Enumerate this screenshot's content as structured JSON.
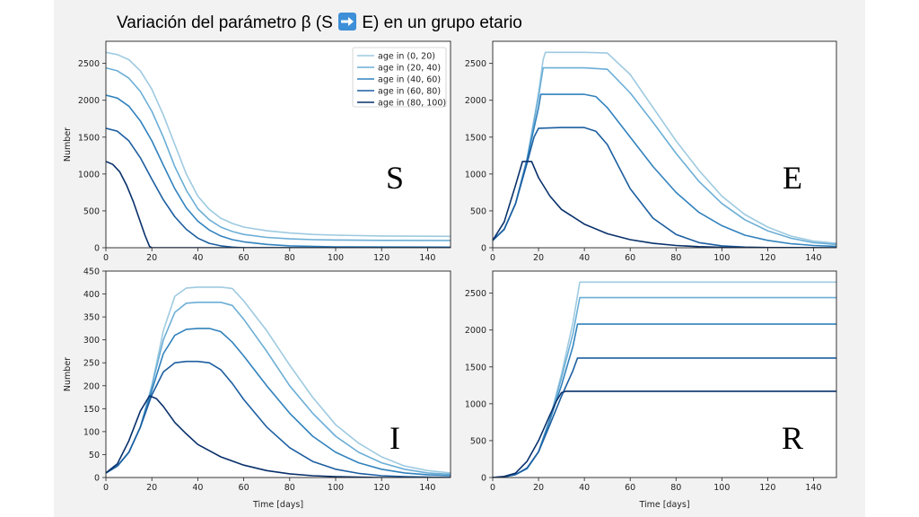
{
  "title": {
    "before": "Variación del parámetro β (S",
    "after": "E) en un grupo etario",
    "arrow_icon": "right-arrow-emoji-icon",
    "arrow_color": "#3d8fd8"
  },
  "colors": [
    "#9ecae1",
    "#6baed6",
    "#3182bd",
    "#1c5ea0",
    "#08306b"
  ],
  "legend": [
    "age in (0, 20)",
    "age in (20, 40)",
    "age in (40, 60)",
    "age in (60, 80)",
    "age in (80, 100)"
  ],
  "chart_data": [
    {
      "type": "line",
      "panel_letter": "S",
      "xlabel": "",
      "ylabel": "Number",
      "xlim": [
        0,
        150
      ],
      "ylim": [
        0,
        2800
      ],
      "xticks": [
        "0",
        "20",
        "40",
        "60",
        "80",
        "100",
        "120",
        "140"
      ],
      "yticks": [
        "0",
        "500",
        "1000",
        "1500",
        "2000",
        "2500"
      ],
      "legend_placement": "top-right",
      "series": [
        {
          "name": "age in (0, 20)",
          "x": [
            0,
            5,
            10,
            15,
            20,
            25,
            30,
            35,
            40,
            45,
            50,
            55,
            60,
            70,
            80,
            90,
            100,
            120,
            150
          ],
          "y": [
            2650,
            2620,
            2550,
            2400,
            2150,
            1800,
            1400,
            1000,
            700,
            520,
            400,
            330,
            280,
            230,
            200,
            180,
            170,
            160,
            155
          ]
        },
        {
          "name": "age in (20, 40)",
          "x": [
            0,
            5,
            10,
            15,
            20,
            25,
            30,
            35,
            40,
            45,
            50,
            55,
            60,
            70,
            80,
            90,
            100,
            120,
            150
          ],
          "y": [
            2440,
            2400,
            2300,
            2120,
            1850,
            1500,
            1100,
            780,
            530,
            380,
            280,
            220,
            180,
            140,
            120,
            110,
            105,
            100,
            98
          ]
        },
        {
          "name": "age in (40, 60)",
          "x": [
            0,
            5,
            10,
            15,
            20,
            25,
            30,
            35,
            40,
            45,
            50,
            55,
            60,
            70,
            80,
            100,
            150
          ],
          "y": [
            2070,
            2030,
            1920,
            1720,
            1450,
            1120,
            800,
            540,
            360,
            240,
            160,
            110,
            80,
            45,
            25,
            12,
            8
          ]
        },
        {
          "name": "age in (60, 80)",
          "x": [
            0,
            5,
            10,
            15,
            20,
            25,
            30,
            35,
            40,
            45,
            50,
            55,
            60,
            150
          ],
          "y": [
            1620,
            1580,
            1450,
            1220,
            930,
            650,
            420,
            250,
            130,
            60,
            25,
            8,
            0,
            0
          ]
        },
        {
          "name": "age in (80, 100)",
          "x": [
            0,
            3,
            6,
            9,
            12,
            15,
            17,
            19,
            20,
            150
          ],
          "y": [
            1170,
            1130,
            1030,
            850,
            620,
            350,
            170,
            20,
            0,
            0
          ]
        }
      ]
    },
    {
      "type": "line",
      "panel_letter": "E",
      "xlabel": "",
      "ylabel": "",
      "xlim": [
        0,
        150
      ],
      "ylim": [
        0,
        2800
      ],
      "xticks": [
        "0",
        "20",
        "40",
        "60",
        "80",
        "100",
        "120",
        "140"
      ],
      "yticks": [
        "0",
        "500",
        "1000",
        "1500",
        "2000",
        "2500"
      ],
      "series": [
        {
          "name": "age in (0, 20)",
          "x": [
            0,
            5,
            10,
            15,
            20,
            22,
            23,
            30,
            40,
            50,
            60,
            70,
            80,
            90,
            100,
            110,
            120,
            130,
            140,
            150
          ],
          "y": [
            100,
            250,
            600,
            1200,
            2100,
            2550,
            2650,
            2650,
            2650,
            2640,
            2350,
            1900,
            1450,
            1050,
            700,
            450,
            280,
            160,
            90,
            60
          ]
        },
        {
          "name": "age in (20, 40)",
          "x": [
            0,
            5,
            10,
            15,
            20,
            22,
            30,
            40,
            50,
            60,
            70,
            80,
            90,
            100,
            110,
            120,
            130,
            140,
            150
          ],
          "y": [
            100,
            250,
            600,
            1200,
            2050,
            2440,
            2440,
            2440,
            2420,
            2100,
            1700,
            1280,
            900,
            600,
            380,
            230,
            130,
            70,
            45
          ]
        },
        {
          "name": "age in (40, 60)",
          "x": [
            0,
            5,
            10,
            15,
            20,
            21,
            30,
            40,
            45,
            50,
            60,
            70,
            80,
            90,
            100,
            110,
            120,
            130,
            140,
            150
          ],
          "y": [
            100,
            250,
            600,
            1200,
            1900,
            2080,
            2080,
            2080,
            2050,
            1900,
            1500,
            1100,
            750,
            480,
            300,
            170,
            100,
            55,
            30,
            20
          ]
        },
        {
          "name": "age in (60, 80)",
          "x": [
            0,
            5,
            10,
            15,
            18,
            20,
            30,
            40,
            45,
            50,
            55,
            60,
            70,
            80,
            90,
            100,
            110,
            120,
            150
          ],
          "y": [
            100,
            250,
            600,
            1150,
            1500,
            1620,
            1630,
            1630,
            1580,
            1400,
            1100,
            800,
            400,
            180,
            70,
            25,
            8,
            3,
            0
          ]
        },
        {
          "name": "age in (80, 100)",
          "x": [
            0,
            5,
            10,
            13,
            17,
            20,
            25,
            30,
            40,
            50,
            60,
            70,
            80,
            90,
            100,
            120,
            150
          ],
          "y": [
            100,
            350,
            850,
            1170,
            1170,
            950,
            700,
            520,
            320,
            190,
            110,
            60,
            30,
            15,
            6,
            2,
            0
          ]
        }
      ]
    },
    {
      "type": "line",
      "panel_letter": "I",
      "xlabel": "Time [days]",
      "ylabel": "Number",
      "xlim": [
        0,
        150
      ],
      "ylim": [
        0,
        450
      ],
      "xticks": [
        "0",
        "20",
        "40",
        "60",
        "80",
        "100",
        "120",
        "140"
      ],
      "yticks": [
        "0",
        "50",
        "100",
        "150",
        "200",
        "250",
        "300",
        "350",
        "400",
        "450"
      ],
      "series": [
        {
          "name": "age in (0, 20)",
          "x": [
            0,
            5,
            10,
            15,
            20,
            25,
            30,
            35,
            40,
            50,
            55,
            60,
            70,
            80,
            90,
            100,
            110,
            120,
            130,
            140,
            150
          ],
          "y": [
            10,
            25,
            55,
            110,
            200,
            320,
            395,
            413,
            415,
            415,
            412,
            385,
            320,
            245,
            175,
            115,
            75,
            45,
            25,
            15,
            10
          ]
        },
        {
          "name": "age in (20, 40)",
          "x": [
            0,
            5,
            10,
            15,
            20,
            25,
            30,
            35,
            40,
            50,
            55,
            60,
            70,
            80,
            90,
            100,
            110,
            120,
            130,
            140,
            150
          ],
          "y": [
            10,
            25,
            55,
            110,
            200,
            300,
            360,
            380,
            382,
            382,
            375,
            345,
            275,
            200,
            140,
            90,
            55,
            32,
            18,
            10,
            7
          ]
        },
        {
          "name": "age in (40, 60)",
          "x": [
            0,
            5,
            10,
            15,
            20,
            25,
            30,
            35,
            40,
            45,
            50,
            55,
            60,
            70,
            80,
            90,
            100,
            110,
            120,
            130,
            140,
            150
          ],
          "y": [
            10,
            25,
            55,
            110,
            190,
            270,
            310,
            323,
            325,
            325,
            318,
            295,
            265,
            200,
            140,
            90,
            55,
            32,
            18,
            10,
            6,
            4
          ]
        },
        {
          "name": "age in (60, 80)",
          "x": [
            0,
            5,
            10,
            15,
            20,
            25,
            30,
            35,
            40,
            45,
            50,
            55,
            60,
            70,
            80,
            90,
            100,
            110,
            120,
            130,
            150
          ],
          "y": [
            10,
            25,
            55,
            110,
            180,
            230,
            250,
            253,
            253,
            250,
            235,
            205,
            170,
            110,
            65,
            35,
            18,
            9,
            4,
            2,
            0
          ]
        },
        {
          "name": "age in (80, 100)",
          "x": [
            0,
            5,
            10,
            15,
            19,
            22,
            25,
            30,
            35,
            40,
            50,
            60,
            70,
            80,
            90,
            100,
            110,
            120,
            150
          ],
          "y": [
            10,
            30,
            80,
            145,
            178,
            172,
            155,
            120,
            95,
            72,
            45,
            27,
            15,
            8,
            4,
            2,
            1,
            0,
            0
          ]
        }
      ]
    },
    {
      "type": "line",
      "panel_letter": "R",
      "xlabel": "Time [days]",
      "ylabel": "",
      "xlim": [
        0,
        150
      ],
      "ylim": [
        0,
        2800
      ],
      "xticks": [
        "0",
        "20",
        "40",
        "60",
        "80",
        "100",
        "120",
        "140"
      ],
      "yticks": [
        "0",
        "500",
        "1000",
        "1500",
        "2000",
        "2500"
      ],
      "series": [
        {
          "name": "age in (0, 20)",
          "x": [
            0,
            5,
            10,
            15,
            20,
            25,
            30,
            35,
            38,
            40,
            150
          ],
          "y": [
            0,
            10,
            40,
            120,
            350,
            800,
            1400,
            2100,
            2650,
            2650,
            2650
          ]
        },
        {
          "name": "age in (20, 40)",
          "x": [
            0,
            5,
            10,
            15,
            20,
            25,
            30,
            35,
            38,
            40,
            150
          ],
          "y": [
            0,
            10,
            40,
            120,
            350,
            800,
            1350,
            1950,
            2440,
            2440,
            2440
          ]
        },
        {
          "name": "age in (40, 60)",
          "x": [
            0,
            5,
            10,
            15,
            20,
            25,
            30,
            35,
            37,
            40,
            150
          ],
          "y": [
            0,
            10,
            40,
            120,
            350,
            780,
            1250,
            1780,
            2080,
            2080,
            2080
          ]
        },
        {
          "name": "age in (60, 80)",
          "x": [
            0,
            5,
            10,
            15,
            20,
            25,
            30,
            35,
            37,
            40,
            150
          ],
          "y": [
            0,
            10,
            40,
            130,
            350,
            720,
            1100,
            1450,
            1620,
            1620,
            1620
          ]
        },
        {
          "name": "age in (80, 100)",
          "x": [
            0,
            5,
            10,
            15,
            20,
            25,
            28,
            30,
            32,
            150
          ],
          "y": [
            0,
            15,
            60,
            220,
            500,
            850,
            1050,
            1150,
            1170,
            1170
          ]
        }
      ]
    }
  ]
}
